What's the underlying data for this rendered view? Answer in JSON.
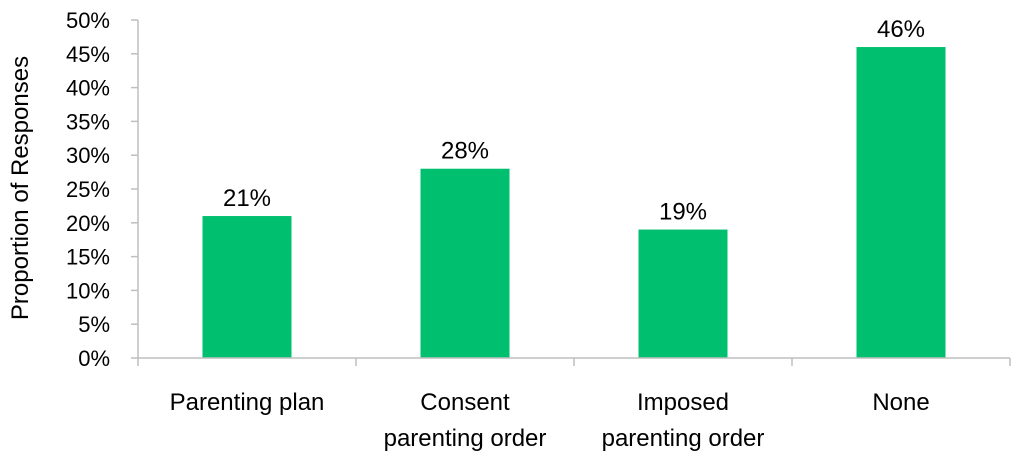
{
  "chart_data": {
    "type": "bar",
    "title": "",
    "xlabel": "",
    "ylabel": "Proportion of Responses",
    "ylim": [
      0,
      50
    ],
    "yticks": [
      "0%",
      "5%",
      "10%",
      "15%",
      "20%",
      "25%",
      "30%",
      "35%",
      "40%",
      "45%",
      "50%"
    ],
    "categories": [
      [
        "Parenting plan"
      ],
      [
        "Consent",
        "parenting order"
      ],
      [
        "Imposed",
        "parenting order"
      ],
      [
        "None"
      ]
    ],
    "values": [
      21,
      28,
      19,
      46
    ],
    "data_labels": [
      "21%",
      "28%",
      "19%",
      "46%"
    ],
    "grid": false,
    "legend": "none",
    "bar_color": "#00BF6F",
    "axis_color": "#BFBFBF"
  }
}
